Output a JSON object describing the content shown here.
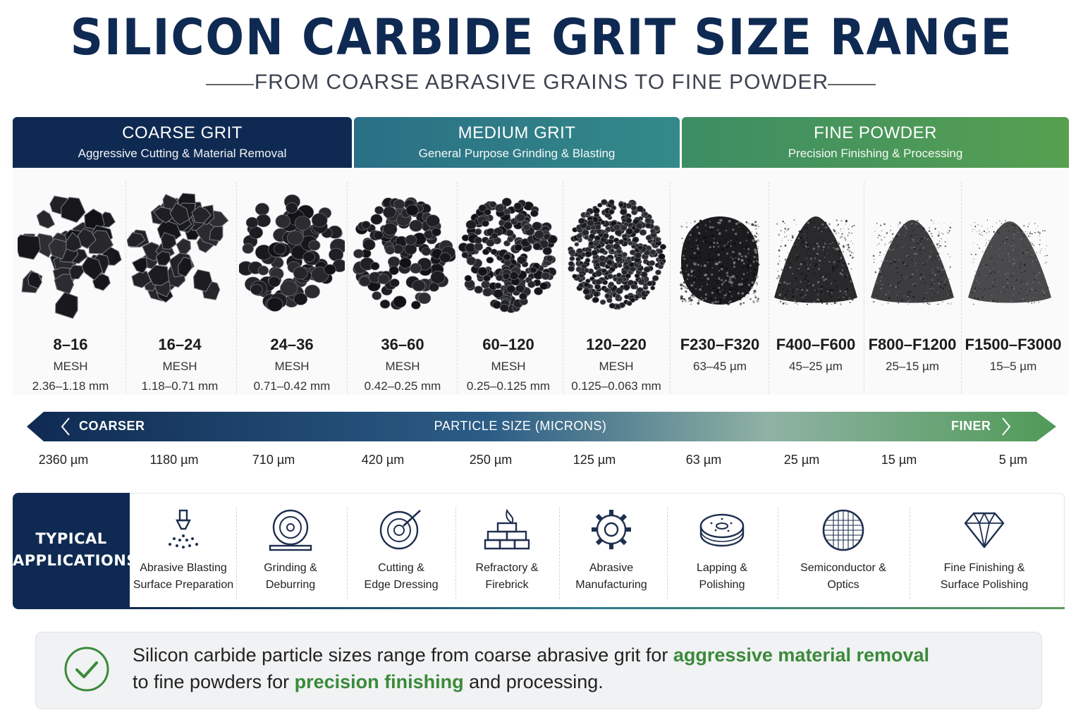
{
  "title": "SILICON CARBIDE GRIT SIZE RANGE",
  "subtitle": "FROM COARSE ABRASIVE GRAINS TO FINE POWDER",
  "categories": [
    {
      "name": "COARSE GRIT",
      "desc": "Aggressive Cutting & Material Removal",
      "color": "#0f2a52"
    },
    {
      "name": "MEDIUM GRIT",
      "desc": "General Purpose Grinding & Blasting",
      "color": "#2d7b8a"
    },
    {
      "name": "FINE POWDER",
      "desc": "Precision Finishing & Processing",
      "color": "#4f9a56"
    }
  ],
  "grits": [
    {
      "size": "8–16",
      "unit": "MESH",
      "mm": "2.36–1.18 mm"
    },
    {
      "size": "16–24",
      "unit": "MESH",
      "mm": "1.18–0.71 mm"
    },
    {
      "size": "24–36",
      "unit": "MESH",
      "mm": "0.71–0.42 mm"
    },
    {
      "size": "36–60",
      "unit": "MESH",
      "mm": "0.42–0.25 mm"
    },
    {
      "size": "60–120",
      "unit": "MESH",
      "mm": "0.25–0.125 mm"
    },
    {
      "size": "120–220",
      "unit": "MESH",
      "mm": "0.125–0.063 mm"
    },
    {
      "size": "F230–F320",
      "unit": "63–45 µm",
      "mm": ""
    },
    {
      "size": "F400–F600",
      "unit": "45–25 µm",
      "mm": ""
    },
    {
      "size": "F800–F1200",
      "unit": "25–15 µm",
      "mm": ""
    },
    {
      "size": "F1500–F3000",
      "unit": "15–5 µm",
      "mm": ""
    }
  ],
  "scale": {
    "left_label": "COARSER",
    "center_label": "PARTICLE SIZE (MICRONS)",
    "right_label": "FINER",
    "ticks": [
      "2360 µm",
      "1180 µm",
      "710 µm",
      "420 µm",
      "250 µm",
      "125 µm",
      "63 µm",
      "25 µm",
      "15 µm",
      "5 µm"
    ]
  },
  "applications": {
    "heading_l1": "TYPICAL",
    "heading_l2": "APPLICATIONS",
    "items": [
      {
        "l1": "Abrasive Blasting",
        "l2": "Surface Preparation",
        "icon": "spray-nozzle-icon"
      },
      {
        "l1": "Grinding &",
        "l2": "Deburring",
        "icon": "grinding-wheel-icon"
      },
      {
        "l1": "Cutting &",
        "l2": "Edge Dressing",
        "icon": "cutting-disc-icon"
      },
      {
        "l1": "Refractory &",
        "l2": "Firebrick",
        "icon": "firebrick-icon"
      },
      {
        "l1": "Abrasive",
        "l2": "Manufacturing",
        "icon": "gear-icon"
      },
      {
        "l1": "Lapping &",
        "l2": "Polishing",
        "icon": "lapping-disc-icon"
      },
      {
        "l1": "Semiconductor &",
        "l2": "Optics",
        "icon": "wafer-icon"
      },
      {
        "l1": "Fine Finishing &",
        "l2": "Surface Polishing",
        "icon": "diamond-icon"
      }
    ]
  },
  "note": {
    "part1": "Silicon carbide particle sizes range from coarse abrasive grit for ",
    "highlight1": "aggressive material removal",
    "part2": "to fine powders for ",
    "highlight2": "precision finishing",
    "part3": " and processing."
  }
}
